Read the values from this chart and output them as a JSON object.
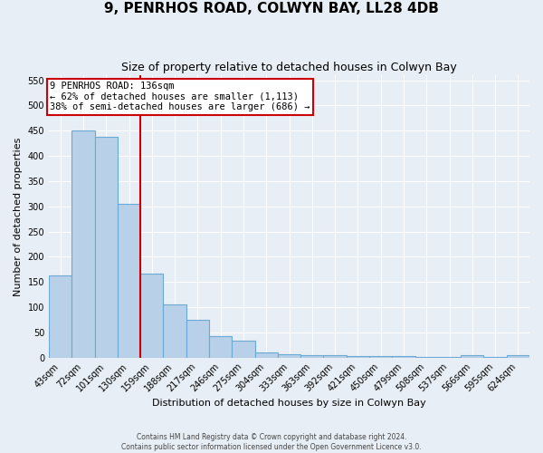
{
  "title": "9, PENRHOS ROAD, COLWYN BAY, LL28 4DB",
  "subtitle": "Size of property relative to detached houses in Colwyn Bay",
  "xlabel": "Distribution of detached houses by size in Colwyn Bay",
  "ylabel": "Number of detached properties",
  "categories": [
    "43sqm",
    "72sqm",
    "101sqm",
    "130sqm",
    "159sqm",
    "188sqm",
    "217sqm",
    "246sqm",
    "275sqm",
    "304sqm",
    "333sqm",
    "363sqm",
    "392sqm",
    "421sqm",
    "450sqm",
    "479sqm",
    "508sqm",
    "537sqm",
    "566sqm",
    "595sqm",
    "624sqm"
  ],
  "values": [
    163,
    450,
    437,
    305,
    167,
    106,
    75,
    43,
    33,
    10,
    7,
    5,
    5,
    2,
    2,
    2,
    1,
    1,
    5,
    1,
    5
  ],
  "bar_color": "#b8d0e8",
  "bar_edge_color": "#6aaad4",
  "background_color": "#e8eef5",
  "grid_color": "#ffffff",
  "red_line_x": 3.5,
  "red_line_color": "#cc0000",
  "annotation_text": "9 PENRHOS ROAD: 136sqm\n← 62% of detached houses are smaller (1,113)\n38% of semi-detached houses are larger (686) →",
  "annotation_box_color": "#ffffff",
  "annotation_box_edge_color": "#cc0000",
  "ylim": [
    0,
    560
  ],
  "footer_line1": "Contains HM Land Registry data © Crown copyright and database right 2024.",
  "footer_line2": "Contains public sector information licensed under the Open Government Licence v3.0.",
  "yticks": [
    0,
    50,
    100,
    150,
    200,
    250,
    300,
    350,
    400,
    450,
    500,
    550
  ],
  "figsize": [
    6.0,
    5.0
  ],
  "dpi": 100,
  "title_fontsize": 11,
  "subtitle_fontsize": 9,
  "axis_label_fontsize": 8,
  "tick_fontsize": 7,
  "annotation_fontsize": 7.5,
  "footer_fontsize": 5.5
}
